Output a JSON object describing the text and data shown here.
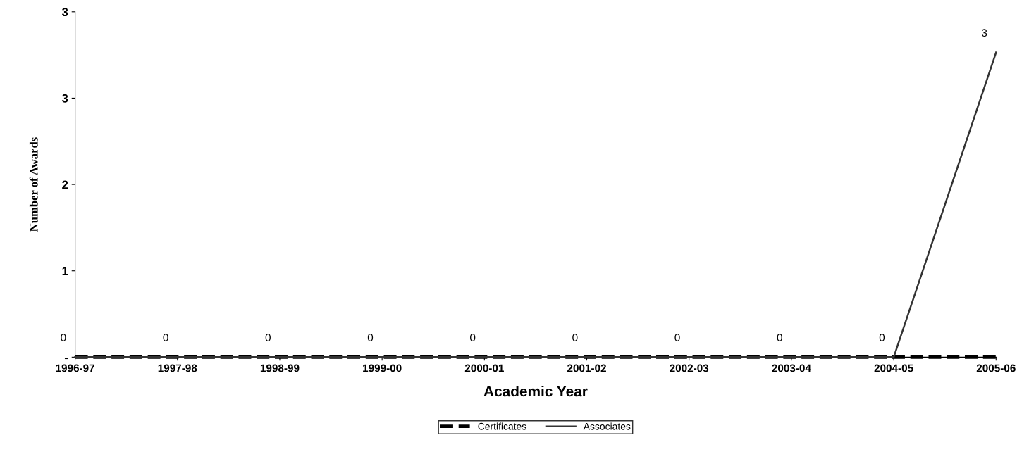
{
  "chart_data": {
    "type": "line",
    "xlabel": "Academic Year",
    "ylabel": "Number of Awards",
    "categories": [
      "1996-97",
      "1997-98",
      "1998-99",
      "1999-00",
      "2000-01",
      "2001-02",
      "2002-03",
      "2003-04",
      "2004-05",
      "2005-06"
    ],
    "series": [
      {
        "name": "Certificates",
        "color": "#000000",
        "line_style": "dashed",
        "values": [
          0,
          0,
          0,
          0,
          0,
          0,
          0,
          0,
          0,
          0
        ]
      },
      {
        "name": "Associates",
        "color": "#333333",
        "line_style": "solid",
        "values": [
          0,
          0,
          0,
          0,
          0,
          0,
          0,
          0,
          0,
          3
        ],
        "value_labels": [
          "0",
          "0",
          "0",
          "0",
          "0",
          "0",
          "0",
          "0",
          "0",
          "3"
        ]
      }
    ],
    "ylim": [
      0,
      3.4
    ],
    "yticks": [
      {
        "value": 0,
        "label": "-"
      },
      {
        "value": 0.85,
        "label": "1"
      },
      {
        "value": 1.7,
        "label": "2"
      },
      {
        "value": 2.55,
        "label": "3"
      },
      {
        "value": 3.4,
        "label": "3"
      }
    ],
    "grid": false,
    "legend": "bottom",
    "marker": "none"
  }
}
